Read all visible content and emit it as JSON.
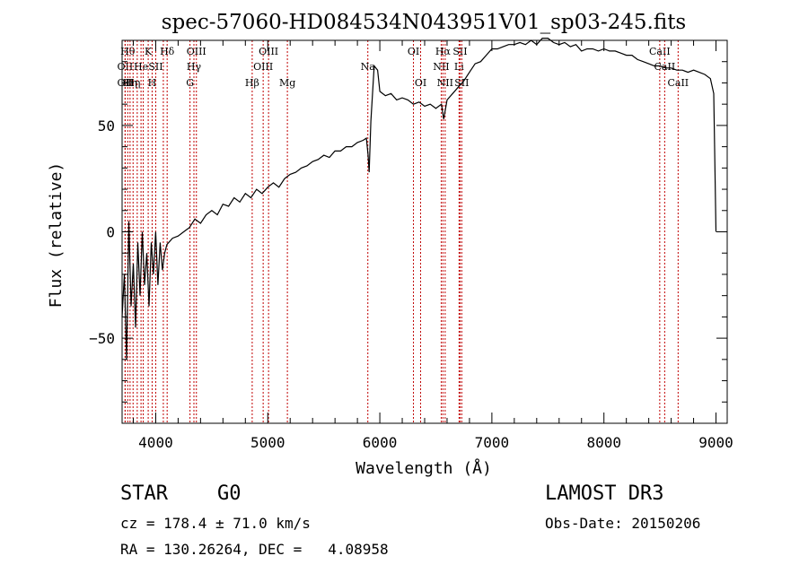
{
  "chart_data": {
    "type": "line",
    "title": "spec-57060-HD084534N043951V01_sp03-245.fits",
    "xlabel": "Wavelength (Å)",
    "ylabel": "Flux (relative)",
    "xlim": [
      3700,
      9100
    ],
    "ylim": [
      -90,
      90
    ],
    "x_ticks": [
      4000,
      5000,
      6000,
      7000,
      8000,
      9000
    ],
    "y_ticks": [
      -50,
      0,
      50
    ],
    "line_color": "#000000",
    "marker_color": "#c00000",
    "spectrum": {
      "name": "flux",
      "x": [
        3700,
        3720,
        3740,
        3760,
        3780,
        3800,
        3820,
        3840,
        3860,
        3880,
        3900,
        3920,
        3940,
        3960,
        3980,
        4000,
        4020,
        4040,
        4060,
        4080,
        4100,
        4150,
        4200,
        4250,
        4300,
        4350,
        4400,
        4450,
        4500,
        4550,
        4600,
        4650,
        4700,
        4750,
        4800,
        4850,
        4900,
        4950,
        5000,
        5050,
        5100,
        5150,
        5200,
        5250,
        5300,
        5350,
        5400,
        5450,
        5500,
        5550,
        5600,
        5650,
        5700,
        5750,
        5800,
        5850,
        5880,
        5895,
        5905,
        5920,
        5950,
        5980,
        6000,
        6050,
        6100,
        6150,
        6200,
        6250,
        6300,
        6350,
        6400,
        6450,
        6500,
        6550,
        6570,
        6600,
        6650,
        6700,
        6750,
        6800,
        6850,
        6900,
        6950,
        7000,
        7050,
        7100,
        7150,
        7200,
        7250,
        7300,
        7350,
        7400,
        7450,
        7500,
        7550,
        7600,
        7650,
        7700,
        7750,
        7800,
        7850,
        7900,
        7950,
        8000,
        8050,
        8100,
        8150,
        8200,
        8250,
        8300,
        8350,
        8400,
        8450,
        8500,
        8550,
        8600,
        8650,
        8700,
        8750,
        8800,
        8850,
        8900,
        8950,
        8980,
        9000
      ],
      "values": [
        -40,
        -20,
        -60,
        5,
        -35,
        -15,
        -45,
        -5,
        -30,
        0,
        -25,
        -10,
        -35,
        -5,
        -20,
        0,
        -25,
        -5,
        -18,
        -10,
        -6,
        -3,
        -2,
        0,
        2,
        6,
        4,
        8,
        10,
        8,
        13,
        12,
        16,
        14,
        18,
        16,
        20,
        18,
        21,
        23,
        21,
        25,
        27,
        28,
        30,
        31,
        33,
        34,
        36,
        35,
        38,
        38,
        40,
        40,
        42,
        43,
        44,
        36,
        28,
        52,
        78,
        76,
        66,
        64,
        65,
        62,
        63,
        62,
        60,
        61,
        59,
        60,
        58,
        60,
        53,
        62,
        65,
        68,
        71,
        75,
        79,
        80,
        83,
        86,
        86,
        87,
        88,
        88,
        89,
        88,
        90,
        88,
        91,
        91,
        89,
        88,
        89,
        87,
        88,
        85,
        86,
        86,
        85,
        86,
        85,
        85,
        84,
        83,
        83,
        81,
        80,
        79,
        78,
        78,
        77,
        77,
        76,
        76,
        75,
        76,
        75,
        74,
        72,
        65,
        0
      ]
    },
    "markers": [
      {
        "wl": 3727,
        "label": "OII",
        "row": 2
      },
      {
        "wl": 3727,
        "label": "OII",
        "row": 3
      },
      {
        "wl": 3750,
        "label": "Hθ",
        "row": 1
      },
      {
        "wl": 3771,
        "label": "Hη",
        "row": 3
      },
      {
        "wl": 3798,
        "label": "Hη",
        "row": 3
      },
      {
        "wl": 3835,
        "label": "",
        "row": 0
      },
      {
        "wl": 3869,
        "label": "He",
        "row": 2
      },
      {
        "wl": 3889,
        "label": "",
        "row": 0
      },
      {
        "wl": 3933,
        "label": "K",
        "row": 1
      },
      {
        "wl": 3968,
        "label": "H",
        "row": 3
      },
      {
        "wl": 4000,
        "label": "SII",
        "row": 2
      },
      {
        "wl": 4068,
        "label": "",
        "row": 0
      },
      {
        "wl": 4102,
        "label": "Hδ",
        "row": 1
      },
      {
        "wl": 4306,
        "label": "G",
        "row": 3
      },
      {
        "wl": 4341,
        "label": "Hγ",
        "row": 2
      },
      {
        "wl": 4363,
        "label": "OIII",
        "row": 1
      },
      {
        "wl": 4861,
        "label": "Hβ",
        "row": 3
      },
      {
        "wl": 4959,
        "label": "OIII",
        "row": 2
      },
      {
        "wl": 5007,
        "label": "OIII",
        "row": 1
      },
      {
        "wl": 5175,
        "label": "Mg",
        "row": 3
      },
      {
        "wl": 5893,
        "label": "Na",
        "row": 2
      },
      {
        "wl": 6300,
        "label": "OI",
        "row": 1
      },
      {
        "wl": 6364,
        "label": "OI",
        "row": 3
      },
      {
        "wl": 6548,
        "label": "NII",
        "row": 2
      },
      {
        "wl": 6563,
        "label": "Hα",
        "row": 1
      },
      {
        "wl": 6583,
        "label": "NII",
        "row": 3
      },
      {
        "wl": 6707,
        "label": "Li",
        "row": 2
      },
      {
        "wl": 6716,
        "label": "SII",
        "row": 1
      },
      {
        "wl": 6731,
        "label": "SII",
        "row": 3
      },
      {
        "wl": 8498,
        "label": "CaII",
        "row": 1
      },
      {
        "wl": 8542,
        "label": "CaII",
        "row": 2
      },
      {
        "wl": 8662,
        "label": "CaII",
        "row": 3
      }
    ]
  },
  "info": {
    "object_type": "STAR",
    "subclass": "G0",
    "cz": "cz = 178.4 ± 71.0 km/s",
    "coords": "RA = 130.26264, DEC =   4.08958",
    "survey": "LAMOST DR3",
    "obs_date": "Obs-Date: 20150206"
  }
}
